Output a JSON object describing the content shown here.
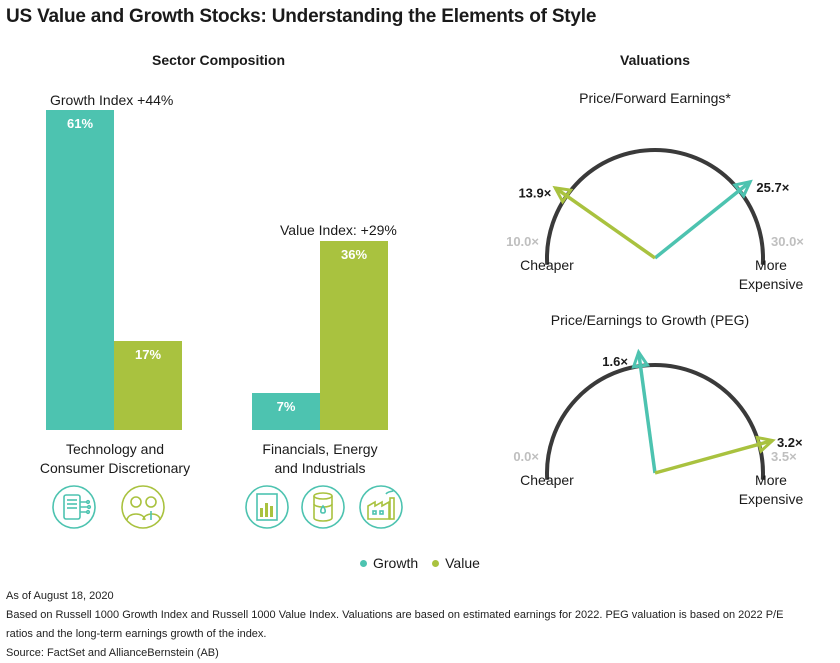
{
  "title": "US Value and Growth Stocks: Understanding the Elements of Style",
  "colors": {
    "growth": "#4dc3b0",
    "value": "#a9c23f",
    "arc": "#3a3a3a",
    "endpoint": "#bfbfbf"
  },
  "chart_data": [
    {
      "type": "bar",
      "title": "Sector Composition",
      "categories": [
        "Technology and Consumer Discretionary",
        "Financials, Energy and Industrials"
      ],
      "series": [
        {
          "name": "Growth",
          "values": [
            61,
            7
          ]
        },
        {
          "name": "Value",
          "values": [
            17,
            36
          ]
        }
      ],
      "value_labels": {
        "growth": [
          "61%",
          "7%"
        ],
        "value": [
          "17%",
          "36%"
        ]
      },
      "annotations": [
        "Growth Index +44%",
        "Value Index: +29%"
      ],
      "ylim": [
        0,
        61
      ],
      "category_label_lines": [
        [
          "Technology and",
          "Consumer Discretionary"
        ],
        [
          "Financials, Energy",
          "and Industrials"
        ]
      ],
      "icons": [
        [
          "tablet-circuit-icon",
          "people-icon"
        ],
        [
          "report-chart-icon",
          "oil-barrel-icon",
          "factory-icon"
        ]
      ],
      "legend": {
        "position": "bottom",
        "items": [
          "Growth",
          "Value"
        ]
      }
    },
    {
      "type": "gauge",
      "section_title": "Valuations",
      "title": "Price/Forward Earnings*",
      "min": 10.0,
      "max": 30.0,
      "min_label": "10.0×",
      "max_label": "30.0×",
      "growth": 25.7,
      "growth_label": "25.7×",
      "value": 13.9,
      "value_label": "13.9×",
      "left_label": [
        "Cheaper"
      ],
      "right_label": [
        "More",
        "Expensive"
      ]
    },
    {
      "type": "gauge",
      "title": "Price/Earnings to Growth (PEG)",
      "min": 0.0,
      "max": 3.5,
      "min_label": "0.0×",
      "max_label": "3.5×",
      "growth": 1.6,
      "growth_label": "1.6×",
      "value": 3.2,
      "value_label": "3.2×",
      "left_label": [
        "Cheaper"
      ],
      "right_label": [
        "More",
        "Expensive"
      ]
    }
  ],
  "footnotes": [
    "As of August 18, 2020",
    "Based on Russell 1000 Growth Index and Russell 1000 Value Index. Valuations are based on estimated earnings for 2022. PEG valuation is based on 2022 P/E",
    "ratios and the long-term earnings growth of the index.",
    "Source: FactSet and AllianceBernstein (AB)"
  ]
}
